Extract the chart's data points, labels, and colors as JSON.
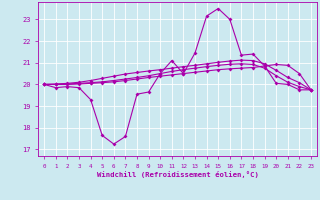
{
  "xlabel": "Windchill (Refroidissement éolien,°C)",
  "background_color": "#cce9f0",
  "line_color": "#aa00aa",
  "grid_color": "#ffffff",
  "xlim": [
    -0.5,
    23.5
  ],
  "ylim": [
    16.7,
    23.8
  ],
  "yticks": [
    17,
    18,
    19,
    20,
    21,
    22,
    23
  ],
  "xticks": [
    0,
    1,
    2,
    3,
    4,
    5,
    6,
    7,
    8,
    9,
    10,
    11,
    12,
    13,
    14,
    15,
    16,
    17,
    18,
    19,
    20,
    21,
    22,
    23
  ],
  "line1_y": [
    20.0,
    19.85,
    19.9,
    19.85,
    19.3,
    17.65,
    17.25,
    17.6,
    19.55,
    19.65,
    20.5,
    21.1,
    20.5,
    21.45,
    23.15,
    23.5,
    23.0,
    21.35,
    21.4,
    20.85,
    20.05,
    20.0,
    19.75,
    19.75
  ],
  "line2_y": [
    20.0,
    20.0,
    20.02,
    20.05,
    20.08,
    20.12,
    20.18,
    20.25,
    20.32,
    20.4,
    20.5,
    20.6,
    20.68,
    20.75,
    20.82,
    20.88,
    20.93,
    20.95,
    20.92,
    20.75,
    20.4,
    20.1,
    19.9,
    19.75
  ],
  "line3_y": [
    20.0,
    20.02,
    20.05,
    20.1,
    20.18,
    20.28,
    20.38,
    20.48,
    20.55,
    20.62,
    20.68,
    20.75,
    20.82,
    20.88,
    20.95,
    21.02,
    21.08,
    21.12,
    21.1,
    20.95,
    20.65,
    20.32,
    20.08,
    19.75
  ],
  "line4_y": [
    20.0,
    20.0,
    20.0,
    20.02,
    20.05,
    20.08,
    20.12,
    20.18,
    20.25,
    20.32,
    20.38,
    20.44,
    20.5,
    20.56,
    20.62,
    20.68,
    20.72,
    20.75,
    20.78,
    20.85,
    20.92,
    20.88,
    20.5,
    19.75
  ]
}
